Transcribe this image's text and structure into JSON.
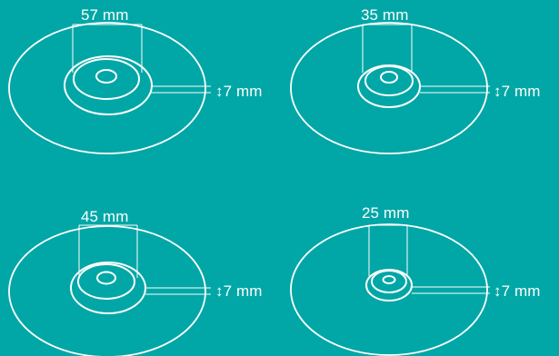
{
  "figure": {
    "background_color": "#00a7a6",
    "line_color": "#ffffff",
    "panels": [
      {
        "width_label": "57 mm",
        "height_label": "↕7 mm"
      },
      {
        "width_label": "35 mm",
        "height_label": "↕7 mm"
      },
      {
        "width_label": "45 mm",
        "height_label": "↕7 mm"
      },
      {
        "width_label": "25 mm",
        "height_label": "↕7 mm"
      }
    ]
  }
}
